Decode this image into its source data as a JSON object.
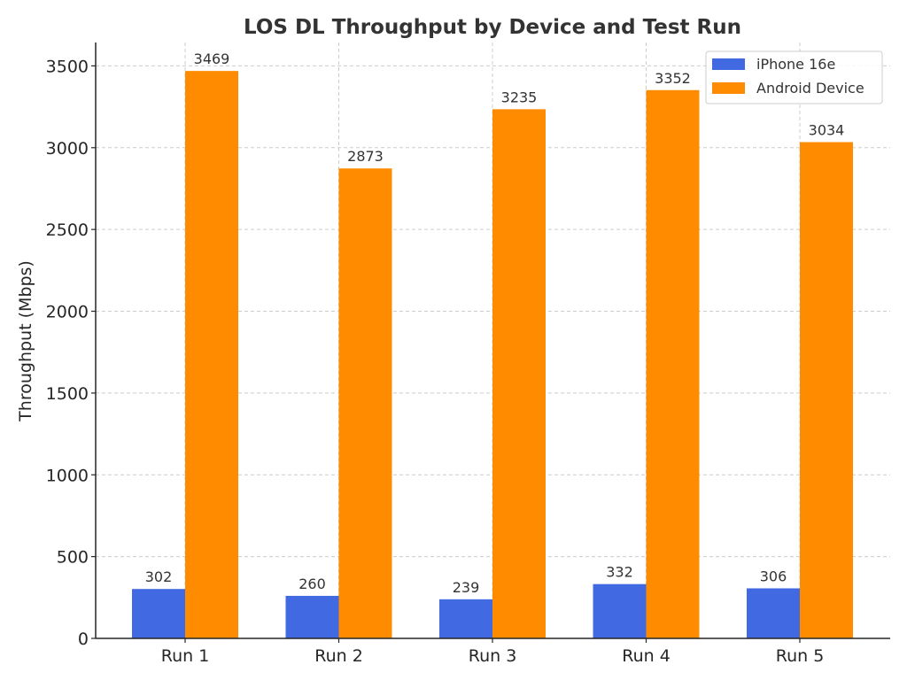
{
  "chart_data": {
    "type": "bar",
    "title": "LOS DL Throughput by Device and Test Run",
    "xlabel": "",
    "ylabel": "Throughput (Mbps)",
    "categories": [
      "Run 1",
      "Run 2",
      "Run 3",
      "Run 4",
      "Run 5"
    ],
    "series": [
      {
        "name": "iPhone 16e",
        "color": "#4169e1",
        "values": [
          302,
          260,
          239,
          332,
          306
        ]
      },
      {
        "name": "Android Device",
        "color": "#ff8c00",
        "values": [
          3469,
          2873,
          3235,
          3352,
          3034
        ]
      }
    ],
    "ylim": [
      0,
      3643
    ],
    "yticks": [
      0,
      500,
      1000,
      1500,
      2000,
      2500,
      3000,
      3500
    ],
    "grid": true,
    "grid_style": "dashed",
    "legend_position": "top-right",
    "data_labels": true
  }
}
